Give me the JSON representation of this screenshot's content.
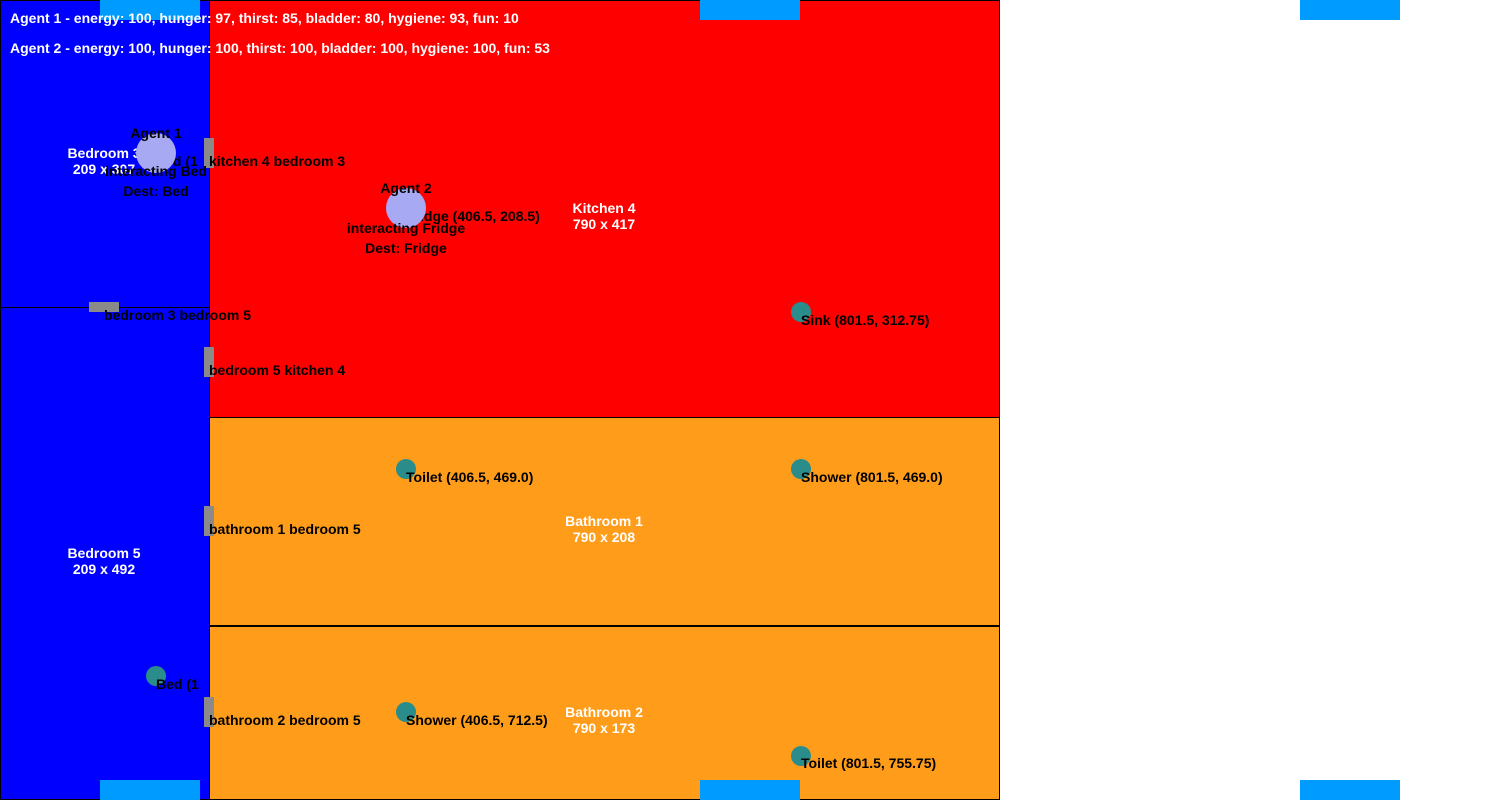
{
  "status": {
    "agent1": "Agent 1 - energy: 100, hunger: 97, thirst: 85, bladder: 80, hygiene: 93, fun: 10",
    "agent2": "Agent 2 - energy: 100, hunger: 100, thirst: 100, bladder: 100, hygiene: 100, fun: 53"
  },
  "rooms": {
    "bedroom3": {
      "name": "Bedroom 3",
      "size": "209 x 307",
      "color": "#0000ff"
    },
    "bedroom5": {
      "name": "Bedroom 5",
      "size": "209 x 492",
      "color": "#0000ff"
    },
    "kitchen4": {
      "name": "Kitchen 4",
      "size": "790 x 417",
      "color": "#ff0000"
    },
    "bathroom1": {
      "name": "Bathroom 1",
      "size": "790 x 208",
      "color": "#ff9d1a"
    },
    "bathroom2": {
      "name": "Bathroom 2",
      "size": "790 x 173",
      "color": "#ff9d1a"
    }
  },
  "doors": {
    "kitchen4_bedroom3": "kitchen 4 bedroom 3",
    "bedroom3_bedroom5": "bedroom 3 bedroom 5",
    "bedroom5_kitchen4": "bedroom 5 kitchen 4",
    "bathroom1_bedroom5": "bathroom 1 bedroom 5",
    "bathroom2_bedroom5": "bathroom 2 bedroom 5"
  },
  "objects": {
    "bed_bedroom3": "Bed (1",
    "fridge": "Fridge (406.5, 208.5)",
    "sink": "Sink (801.5, 312.75)",
    "toilet1": "Toilet (406.5, 469.0)",
    "shower1": "Shower (801.5, 469.0)",
    "bed_bedroom5": "Bed (1",
    "shower2": "Shower (406.5, 712.5)",
    "toilet2": "Toilet (801.5, 755.75)"
  },
  "agents": {
    "agent1": {
      "name": "Agent 1",
      "action": "interacting Bed",
      "dest": "Dest: Bed"
    },
    "agent2": {
      "name": "Agent 2",
      "action": "interacting Fridge",
      "dest": "Dest: Fridge"
    }
  },
  "colors": {
    "marker": "#009bff",
    "object": "#2a8d8c",
    "agent": "#a7a9f2",
    "door": "#8a8a8a"
  }
}
